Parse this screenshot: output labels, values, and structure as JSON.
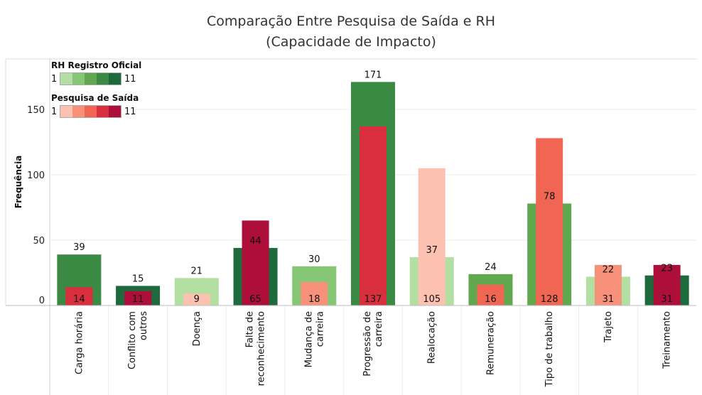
{
  "title_lines": [
    "Comparação Entre Pesquisa de Saída e RH",
    "(Capacidade de Impacto)"
  ],
  "legend": {
    "rh": {
      "title": "RH Registro Oficial",
      "min": "1",
      "max": "11",
      "colors": [
        "#b3dfa3",
        "#86c775",
        "#5fa84e",
        "#3a8a44",
        "#1f6a3c"
      ]
    },
    "pesquisa": {
      "title": "Pesquisa de Saída",
      "min": "1",
      "max": "11",
      "colors": [
        "#fcc1b0",
        "#f7917a",
        "#f06652",
        "#d92e3e",
        "#ad0f3a"
      ]
    }
  },
  "chart_data": {
    "type": "bar",
    "ylabel": "Frequência",
    "ylim": [
      0,
      180
    ],
    "yticks": [
      0,
      50,
      100,
      150
    ],
    "categories": [
      "Carga horária",
      "Conflito com outros",
      "Doença",
      "Falta de reconhecimento",
      "Mudança de carreira",
      "Progressão de carreira",
      "Realocação",
      "Remuneração",
      "Tipo de trabalho",
      "Trajeto",
      "Treinamento"
    ],
    "category_lines": [
      [
        "Carga horária"
      ],
      [
        "Conflito com",
        "outros"
      ],
      [
        "Doença"
      ],
      [
        "Falta de",
        "reconhecimento"
      ],
      [
        "Mudança de",
        "carreira"
      ],
      [
        "Progressão de",
        "carreira"
      ],
      [
        "Realocação"
      ],
      [
        "Remuneração"
      ],
      [
        "Tipo de trabalho"
      ],
      [
        "Trajeto"
      ],
      [
        "Treinamento"
      ]
    ],
    "series": [
      {
        "name": "RH Registro Oficial",
        "values": [
          39,
          15,
          21,
          44,
          30,
          171,
          37,
          24,
          78,
          22,
          23
        ],
        "colors": [
          "#3a8a44",
          "#1f6a3c",
          "#b3dfa3",
          "#1f6a3c",
          "#86c775",
          "#3a8a44",
          "#b3dfa3",
          "#5fa84e",
          "#5fa84e",
          "#b3dfa3",
          "#1f6a3c"
        ]
      },
      {
        "name": "Pesquisa de Saída",
        "values": [
          14,
          11,
          9,
          65,
          18,
          137,
          105,
          16,
          128,
          31,
          31
        ],
        "colors": [
          "#d92e3e",
          "#ad0f3a",
          "#fcc1b0",
          "#ad0f3a",
          "#f7917a",
          "#d92e3e",
          "#fcc1b0",
          "#f06652",
          "#f06652",
          "#f7917a",
          "#ad0f3a"
        ]
      }
    ]
  }
}
